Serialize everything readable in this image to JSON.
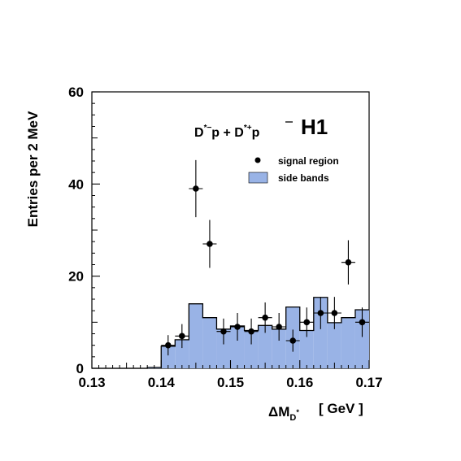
{
  "chart_data": {
    "type": "bar",
    "title": "",
    "experiment_label": "H1",
    "reaction_label": {
      "part1_main": "D",
      "part1_sup": "*−",
      "part1_tail": "p + D",
      "part2_sup": "*+",
      "part2_tail": "p"
    },
    "xlabel": {
      "main": "ΔM",
      "sub": "D",
      "subsup": "*",
      "unit": "[ GeV ]"
    },
    "ylabel": "Entries per 2 MeV",
    "xlim": [
      0.13,
      0.17
    ],
    "ylim": [
      0,
      60
    ],
    "x_ticks": [
      {
        "value": 0.13,
        "label": "0.13"
      },
      {
        "value": 0.14,
        "label": "0.14"
      },
      {
        "value": 0.15,
        "label": "0.15"
      },
      {
        "value": 0.16,
        "label": "0.16"
      },
      {
        "value": 0.17,
        "label": "0.17"
      }
    ],
    "y_ticks": [
      {
        "value": 0,
        "label": "0"
      },
      {
        "value": 20,
        "label": "20"
      },
      {
        "value": 40,
        "label": "40"
      },
      {
        "value": 60,
        "label": "60"
      }
    ],
    "legend": {
      "placement": "top-right",
      "entries": [
        {
          "label": "signal region",
          "marker": "point"
        },
        {
          "label": "side bands",
          "marker": "box"
        }
      ]
    },
    "colors": {
      "side_bands_fill": "#99b3e6",
      "line": "#000000"
    },
    "series": [
      {
        "name": "side bands",
        "style": "histogram",
        "bin_width": 0.002,
        "bin_edges_start": 0.138,
        "values": [
          0.2,
          4.8,
          6.2,
          14.0,
          11.0,
          8.5,
          9.2,
          8.2,
          9.3,
          8.5,
          13.3,
          8.2,
          15.4,
          9.9,
          11.0,
          12.7
        ]
      },
      {
        "name": "signal region",
        "style": "points",
        "x": [
          0.141,
          0.143,
          0.145,
          0.147,
          0.149,
          0.151,
          0.153,
          0.155,
          0.157,
          0.159,
          0.161,
          0.163,
          0.165,
          0.167,
          0.169
        ],
        "y": [
          5,
          7,
          39,
          27,
          8,
          9,
          8,
          11,
          9,
          6,
          10,
          12,
          12,
          23,
          10
        ],
        "err": [
          2.2,
          2.6,
          6.2,
          5.2,
          2.8,
          3.0,
          2.8,
          3.3,
          3.0,
          2.4,
          3.2,
          3.5,
          3.5,
          4.8,
          3.2
        ],
        "xerr": 0.001
      }
    ]
  }
}
